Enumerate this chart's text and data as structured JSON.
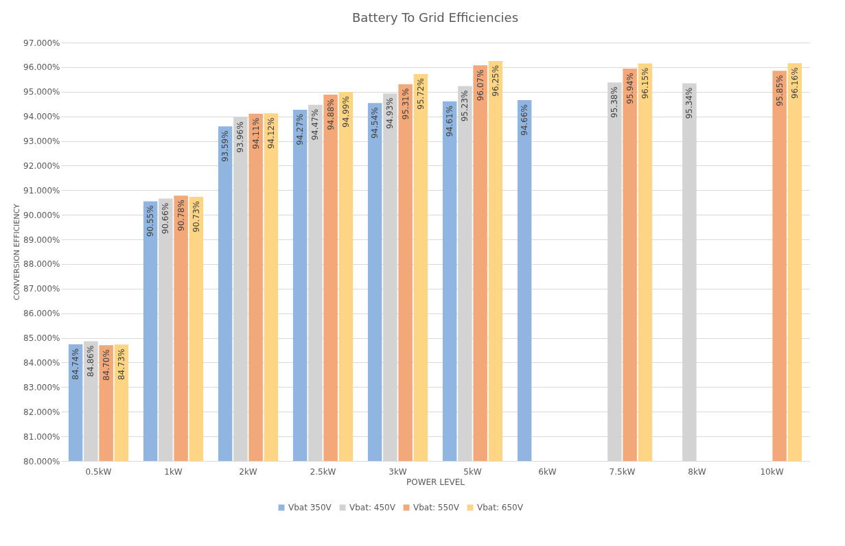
{
  "chart_data": {
    "type": "bar",
    "title": "Battery To Grid Efficiencies",
    "xlabel": "POWER LEVEL",
    "ylabel": "CONVERSION EFFICIENCY",
    "categories": [
      "0.5kW",
      "1kW",
      "2kW",
      "2.5kW",
      "3kW",
      "5kW",
      "6kW",
      "7.5kW",
      "8kW",
      "10kW"
    ],
    "series": [
      {
        "name": "Vbat 350V",
        "color": "#8fb5e0",
        "values": [
          84.74,
          90.55,
          93.59,
          94.27,
          94.54,
          94.61,
          94.66,
          null,
          null,
          null
        ],
        "value_labels": [
          "84.74%",
          "90.55%",
          "93.59%",
          "94.27%",
          "94.54%",
          "94.61%",
          "94.66%",
          null,
          null,
          null
        ]
      },
      {
        "name": "Vbat: 450V",
        "color": "#d3d3d3",
        "values": [
          84.86,
          90.66,
          93.96,
          94.47,
          94.93,
          95.23,
          null,
          95.38,
          95.34,
          null
        ],
        "value_labels": [
          "84.86%",
          "90.66%",
          "93.96%",
          "94.47%",
          "94.93%",
          "95.23%",
          null,
          "95.38%",
          "95.34%",
          null
        ]
      },
      {
        "name": "Vbat: 550V",
        "color": "#f2a878",
        "values": [
          84.7,
          90.78,
          94.11,
          94.88,
          95.31,
          96.07,
          null,
          95.94,
          null,
          95.85
        ],
        "value_labels": [
          "84.70%",
          "90.78%",
          "94.11%",
          "94.88%",
          "95.31%",
          "96.07%",
          null,
          "95.94%",
          null,
          "95.85%"
        ]
      },
      {
        "name": "Vbat: 650V",
        "color": "#fdd584",
        "values": [
          84.73,
          90.73,
          94.12,
          94.99,
          95.72,
          96.25,
          null,
          96.15,
          null,
          96.16
        ],
        "value_labels": [
          "84.73%",
          "90.73%",
          "94.12%",
          "94.99%",
          "95.72%",
          "96.25%",
          null,
          "96.15%",
          null,
          "96.16%"
        ]
      }
    ],
    "ylim": [
      80,
      97
    ],
    "yticks": [
      {
        "value": 80,
        "label": "80.000%"
      },
      {
        "value": 81,
        "label": "81.000%"
      },
      {
        "value": 82,
        "label": "82.000%"
      },
      {
        "value": 83,
        "label": "83.000%"
      },
      {
        "value": 84,
        "label": "84.000%"
      },
      {
        "value": 85,
        "label": "85.000%"
      },
      {
        "value": 86,
        "label": "86.000%"
      },
      {
        "value": 87,
        "label": "87.000%"
      },
      {
        "value": 88,
        "label": "88.000%"
      },
      {
        "value": 89,
        "label": "89.000%"
      },
      {
        "value": 90,
        "label": "90.000%"
      },
      {
        "value": 91,
        "label": "91.000%"
      },
      {
        "value": 92,
        "label": "92.000%"
      },
      {
        "value": 93,
        "label": "93.000%"
      },
      {
        "value": 94,
        "label": "94.000%"
      },
      {
        "value": 95,
        "label": "95.000%"
      },
      {
        "value": 96,
        "label": "96.000%"
      },
      {
        "value": 97,
        "label": "97.000%"
      }
    ],
    "grid": "y",
    "legend": "bottom"
  }
}
